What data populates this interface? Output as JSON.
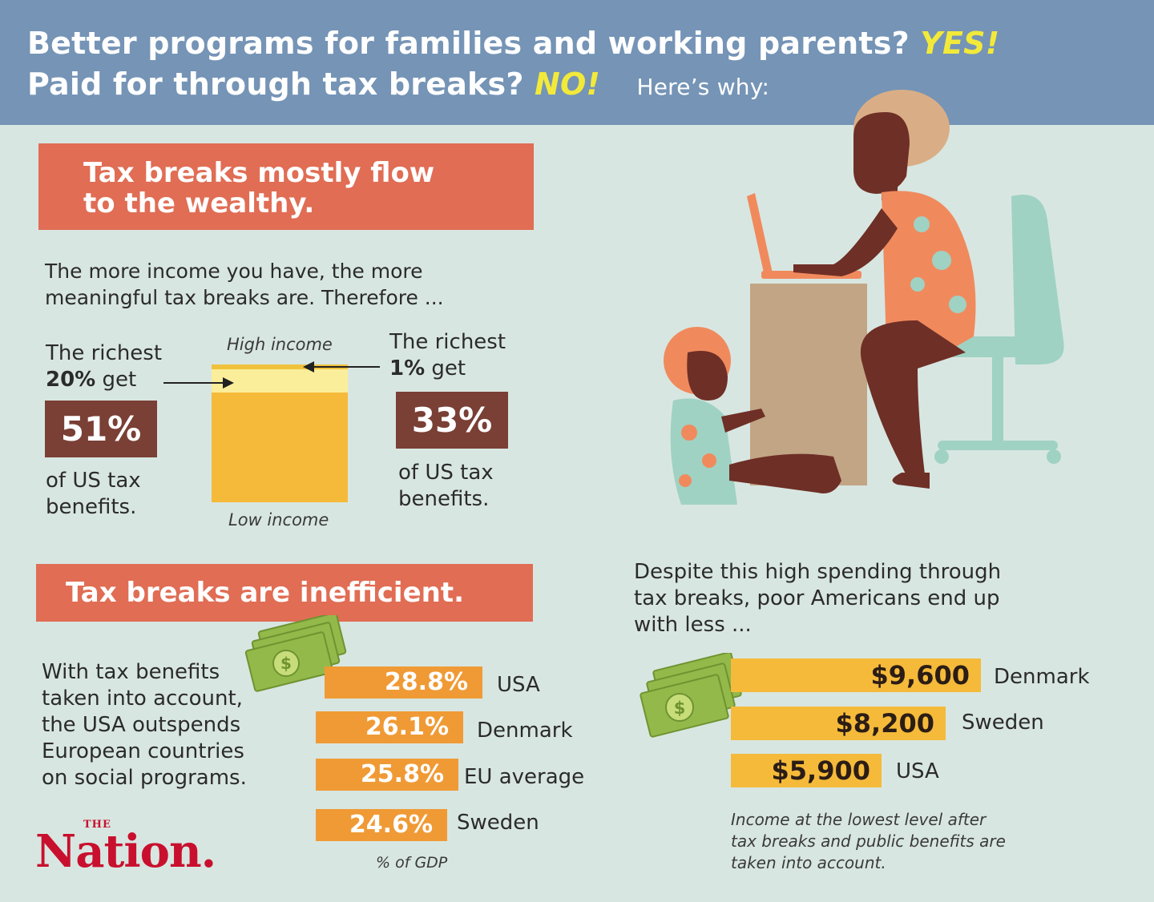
{
  "header": {
    "line1_text": "Better programs for families and working parents?",
    "line1_emph": "YES!",
    "line2_text": "Paid for through tax breaks?",
    "line2_emph": "NO!",
    "line2_suffix": "Here’s why:"
  },
  "section1": {
    "banner_line1": "Tax breaks mostly flow",
    "banner_line2": "to the wealthy.",
    "intro_line1": "The more income you have, the more",
    "intro_line2": "meaningful tax breaks are. Therefore ...",
    "left": {
      "line1": "The richest",
      "bold": "20%",
      "line2_rest": "get",
      "stat": "51%",
      "desc_line1": "of US tax",
      "desc_line2": "benefits."
    },
    "right": {
      "line1": "The richest",
      "bold": "1%",
      "line2_rest": "get",
      "stat": "33%",
      "desc_line1": "of US tax",
      "desc_line2": "benefits."
    },
    "high_income_label": "High income",
    "low_income_label": "Low income"
  },
  "section2": {
    "banner": "Tax breaks are inefficient.",
    "text_lines": [
      "With tax benefits",
      "taken into account,",
      "the USA outspends",
      "European countries",
      "on social programs."
    ],
    "gdp_bars": [
      {
        "label": "USA",
        "value": "28.8%"
      },
      {
        "label": "Denmark",
        "value": "26.1%"
      },
      {
        "label": "EU average",
        "value": "25.8%"
      },
      {
        "label": "Sweden",
        "value": "24.6%"
      }
    ],
    "gdp_note": "% of GDP"
  },
  "section3": {
    "intro_lines": [
      "Despite this high spending through",
      "tax breaks, poor Americans end up",
      "with less ..."
    ],
    "income_bars": [
      {
        "label": "Denmark",
        "value": "$9,600"
      },
      {
        "label": "Sweden",
        "value": "$8,200"
      },
      {
        "label": "USA",
        "value": "$5,900"
      }
    ],
    "note_lines": [
      "Income at the lowest level after",
      "tax breaks and public benefits are",
      "taken into account."
    ]
  },
  "logo": {
    "the": "THE",
    "name": "Nation."
  },
  "icons": [
    "money-stack-icon",
    "money-stack-icon",
    "mother-child-laptop-illustration"
  ],
  "colors": {
    "header_bg": "#7594b6",
    "banner_bg": "#e06d54",
    "stat_box": "#7a3f35",
    "accent_yellow": "#f2e93a",
    "gdp_bar": "#f09a35",
    "income_bar": "#f5ba3a",
    "logo_red": "#c8102e"
  }
}
